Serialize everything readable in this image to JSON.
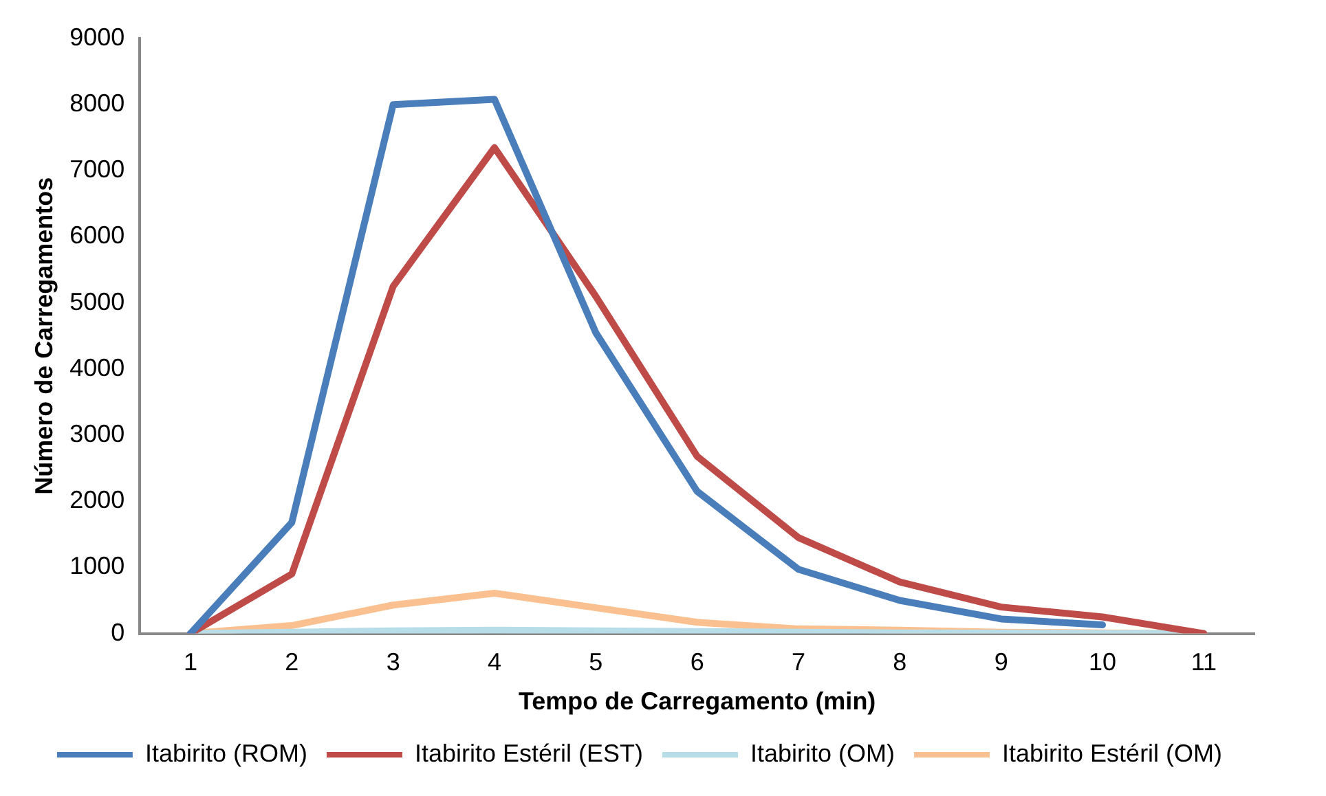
{
  "chart_data": {
    "type": "line",
    "xlabel": "Tempo de Carregamento (min)",
    "ylabel": "Número de Carregamentos",
    "categories": [
      "1",
      "2",
      "3",
      "4",
      "5",
      "6",
      "7",
      "8",
      "9",
      "10",
      "11"
    ],
    "series": [
      {
        "name": "Itabirito (ROM)",
        "color": "#4a7ebb",
        "values": [
          0,
          1680,
          8000,
          8080,
          4550,
          2150,
          970,
          500,
          220,
          130,
          null
        ]
      },
      {
        "name": "Itabirito Estéril (EST)",
        "color": "#be4b48",
        "values": [
          0,
          900,
          5250,
          7350,
          5100,
          2680,
          1450,
          780,
          400,
          250,
          0
        ]
      },
      {
        "name": "Itabirito (OM)",
        "color": "#b7dee8",
        "values": [
          0,
          20,
          40,
          50,
          40,
          30,
          20,
          10,
          5,
          0,
          0
        ]
      },
      {
        "name": "Itabirito Estéril (OM)",
        "color": "#fac090",
        "values": [
          0,
          120,
          430,
          610,
          390,
          170,
          70,
          50,
          20,
          10,
          0
        ]
      }
    ],
    "ylim": [
      0,
      9000
    ],
    "yticks": [
      0,
      1000,
      2000,
      3000,
      4000,
      5000,
      6000,
      7000,
      8000,
      9000
    ],
    "grid": false,
    "legend": "bottom",
    "marker": "none",
    "line_style": "solid"
  }
}
